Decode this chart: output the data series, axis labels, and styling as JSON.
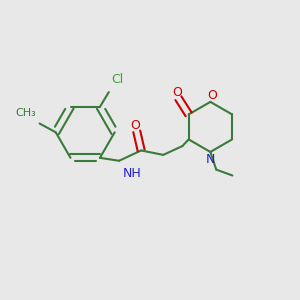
{
  "background_color": "#e8e8e8",
  "bond_color": "#3a7a3a",
  "o_color": "#cc0000",
  "n_color": "#2222cc",
  "cl_color": "#33aa33",
  "line_width": 1.5,
  "font_size": 9,
  "figsize": [
    3.0,
    3.0
  ],
  "dpi": 100,
  "xlim": [
    0,
    10
  ],
  "ylim": [
    0,
    10
  ]
}
